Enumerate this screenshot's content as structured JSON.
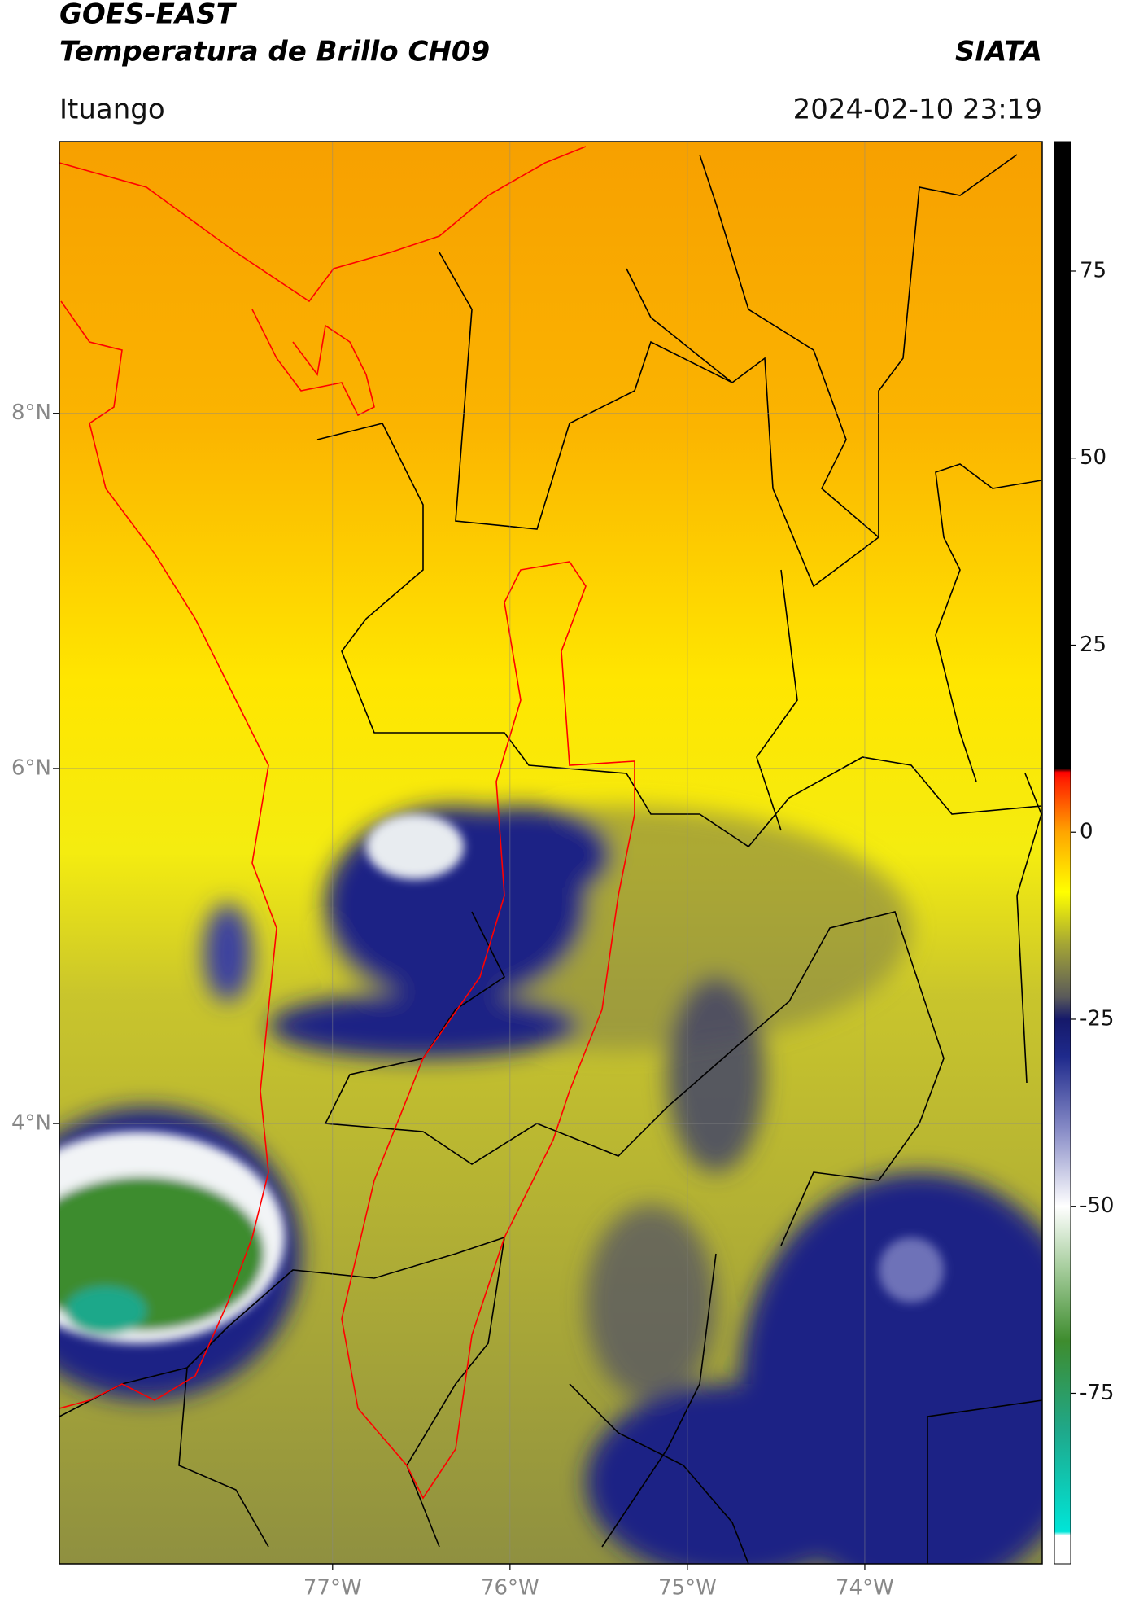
{
  "header": {
    "title": "GOES-EAST",
    "subtitle": "Temperatura de Brillo CH09",
    "source": "SIATA",
    "location": "Ituango",
    "datetime": "2024-02-10 23:19"
  },
  "map": {
    "xlim": [
      -78.54,
      -73.0
    ],
    "ylim": [
      1.52,
      9.53
    ],
    "xticks": [
      {
        "value": -77,
        "label": "77°W"
      },
      {
        "value": -76,
        "label": "76°W"
      },
      {
        "value": -75,
        "label": "75°W"
      },
      {
        "value": -74,
        "label": "74°W"
      }
    ],
    "yticks": [
      {
        "value": 8,
        "label": "8°N"
      },
      {
        "value": 6,
        "label": "6°N"
      },
      {
        "value": 4,
        "label": "4°N"
      }
    ],
    "grid": true
  },
  "colorbar": {
    "lim": [
      -97.8,
      92.3
    ],
    "ticks": [
      75,
      50,
      25,
      0,
      -25,
      -50,
      -75
    ],
    "stops": [
      {
        "value": -97.8,
        "color": "#ffffff"
      },
      {
        "value": -94,
        "color": "#ffffff"
      },
      {
        "value": -93.5,
        "color": "#00e5d8"
      },
      {
        "value": -80,
        "color": "#1fa88a"
      },
      {
        "value": -68,
        "color": "#3e8c2e"
      },
      {
        "value": -58,
        "color": "#a9cfa0"
      },
      {
        "value": -50,
        "color": "#ffffff"
      },
      {
        "value": -40,
        "color": "#8a8ec8"
      },
      {
        "value": -30,
        "color": "#1f2a8c"
      },
      {
        "value": -25,
        "color": "#15196a"
      },
      {
        "value": -22,
        "color": "#5a5a5a"
      },
      {
        "value": -15,
        "color": "#a4a535"
      },
      {
        "value": -8,
        "color": "#ffff00"
      },
      {
        "value": 0,
        "color": "#ffa500"
      },
      {
        "value": 7,
        "color": "#ff2000"
      },
      {
        "value": 8,
        "color": "#ff0000"
      },
      {
        "value": 8.5,
        "color": "#000000"
      },
      {
        "value": 92.3,
        "color": "#000000"
      }
    ]
  }
}
